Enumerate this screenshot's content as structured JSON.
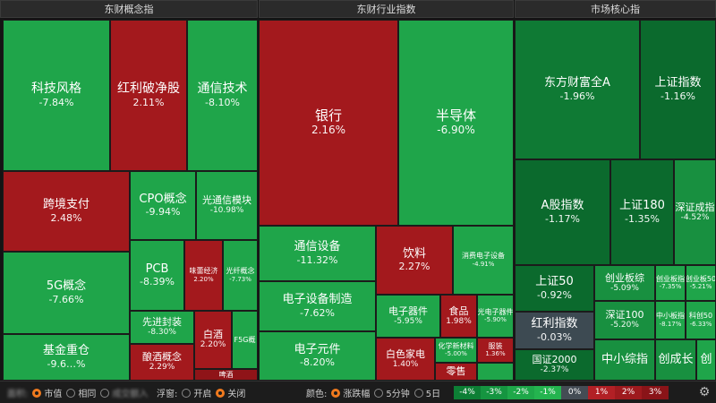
{
  "panels": {
    "concept": {
      "title": "东财概念指"
    },
    "industry": {
      "title": "东财行业指数"
    },
    "market": {
      "title": "市场核心指"
    }
  },
  "concept": {
    "keji": {
      "name": "科技风格",
      "pct": "-7.84%"
    },
    "hongli_po": {
      "name": "红利破净股",
      "pct": "2.11%"
    },
    "tongxin_js": {
      "name": "通信技术",
      "pct": "-8.10%"
    },
    "kuajing": {
      "name": "跨境支付",
      "pct": "2.48%"
    },
    "cpo": {
      "name": "CPO概念",
      "pct": "-9.94%"
    },
    "guangtx": {
      "name": "光通信模块",
      "pct": "-10.98%"
    },
    "g5": {
      "name": "5G概念",
      "pct": "-7.66%"
    },
    "pcb": {
      "name": "PCB",
      "pct": "-8.39%"
    },
    "weifeng": {
      "name": "味蕾经济",
      "pct": "2.20%"
    },
    "guangpan": {
      "name": "光纤概念",
      "pct": "-7.73%"
    },
    "xianjin": {
      "name": "先进封装",
      "pct": "-8.30%"
    },
    "baijiu": {
      "name": "白酒",
      "pct": "2.20%"
    },
    "f5g": {
      "name": "F5G概"
    },
    "jijin": {
      "name": "基金重仓",
      "pct": "-9.6…%"
    },
    "jiujiu": {
      "name": "酿酒概念",
      "pct": "2.29%"
    },
    "small": {
      "name": "啤酒"
    }
  },
  "industry": {
    "yinhang": {
      "name": "银行",
      "pct": "2.16%"
    },
    "bandaoti": {
      "name": "半导体",
      "pct": "-6.90%"
    },
    "txsb": {
      "name": "通信设备",
      "pct": "-11.32%"
    },
    "yinliao": {
      "name": "饮料",
      "pct": "2.27%"
    },
    "xiaofei": {
      "name": "消费电子设备",
      "pct": "-4.91%"
    },
    "dzsbzz": {
      "name": "电子设备制造",
      "pct": "-7.62%"
    },
    "dzqj": {
      "name": "电子器件",
      "pct": "-5.95%"
    },
    "shipin": {
      "name": "食品",
      "pct": "1.98%"
    },
    "guangdian": {
      "name": "光电子器件",
      "pct": "-5.90%"
    },
    "dzyj": {
      "name": "电子元件",
      "pct": "-8.20%"
    },
    "baise": {
      "name": "白色家电",
      "pct": "1.40%"
    },
    "huaxue": {
      "name": "化学新材料",
      "pct": "-5.00%"
    },
    "fuzhuang": {
      "name": "服装",
      "pct": "1.36%"
    },
    "lingshou": {
      "name": "零售"
    }
  },
  "market": {
    "dfcf": {
      "name": "东方财富全A",
      "pct": "-1.96%"
    },
    "szzs": {
      "name": "上证指数",
      "pct": "-1.16%"
    },
    "agu": {
      "name": "A股指数",
      "pct": "-1.17%"
    },
    "sz180": {
      "name": "上证180",
      "pct": "-1.35%"
    },
    "szcz": {
      "name": "深证成指",
      "pct": "-4.52%"
    },
    "sz50": {
      "name": "上证50",
      "pct": "-0.92%"
    },
    "cyb": {
      "name": "创业板综",
      "pct": "-5.09%"
    },
    "cyb2": {
      "name": "创业板指",
      "pct": "-7.35%"
    },
    "szhl": {
      "name": "创业板50",
      "pct": "-5.21%"
    },
    "hlzs": {
      "name": "红利指数",
      "pct": "-0.03%"
    },
    "sz100": {
      "name": "深证100",
      "pct": "-5.20%"
    },
    "zxb": {
      "name": "中小板指",
      "pct": "-8.17%"
    },
    "kc50": {
      "name": "科创50",
      "pct": "-6.33%"
    },
    "gz2000": {
      "name": "国证2000",
      "pct": "-2.37%"
    },
    "zxzz": {
      "name": "中小综指"
    },
    "cyc": {
      "name": "创成长"
    },
    "cyb3": {
      "name": "创"
    }
  },
  "toolbar": {
    "size_label": "面积:",
    "size_opts": [
      "市值",
      "相同",
      "成交额入"
    ],
    "float_label": "浮窗:",
    "float_opts": [
      "开启",
      "关闭"
    ],
    "color_label": "颜色:",
    "color_opts": [
      "涨跌幅",
      "5分钟",
      "5日"
    ],
    "legend": [
      "-4%",
      "-3%",
      "-2%",
      "-1%",
      "0%",
      "1%",
      "2%",
      "3%"
    ],
    "legend_colors": [
      "#0d7f35",
      "#159540",
      "#1ea849",
      "#24b44f",
      "#444c54",
      "#b22025",
      "#9e1a1e",
      "#8a1418"
    ]
  }
}
